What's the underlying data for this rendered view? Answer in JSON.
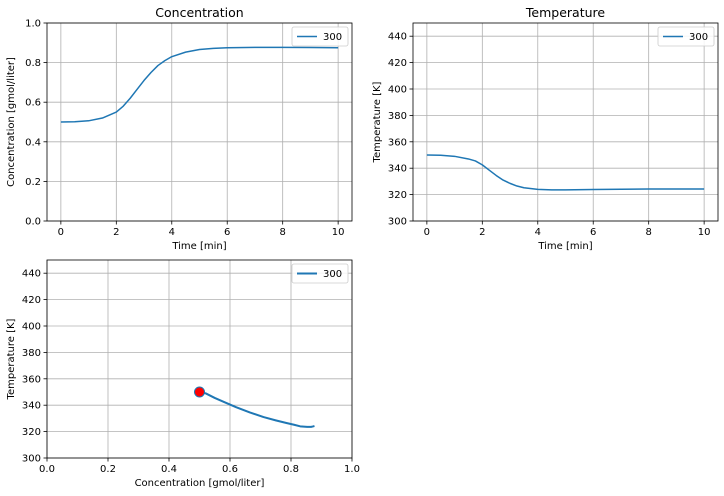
{
  "colors": {
    "series": "#1f77b4",
    "marker": "#ff0000",
    "grid": "#b0b0b0"
  },
  "chart_data": [
    {
      "type": "line",
      "title": "Concentration",
      "xlabel": "Time [min]",
      "ylabel": "Concentration [gmol/liter]",
      "xlim": [
        -0.5,
        10.5
      ],
      "ylim": [
        0,
        1
      ],
      "xticks": [
        0,
        2,
        4,
        6,
        8,
        10
      ],
      "yticks": [
        0.0,
        0.2,
        0.4,
        0.6,
        0.8,
        1.0
      ],
      "xtick_labels": [
        "0",
        "2",
        "4",
        "6",
        "8",
        "10"
      ],
      "ytick_labels": [
        "0.0",
        "0.2",
        "0.4",
        "0.6",
        "0.8",
        "1.0"
      ],
      "grid": true,
      "legend": "top-right",
      "series": [
        {
          "name": "300",
          "x": [
            0,
            0.5,
            1.0,
            1.5,
            2.0,
            2.25,
            2.5,
            2.75,
            3.0,
            3.25,
            3.5,
            3.75,
            4.0,
            4.5,
            5.0,
            5.5,
            6.0,
            7.0,
            8.0,
            9.0,
            10.0
          ],
          "y": [
            0.5,
            0.501,
            0.506,
            0.52,
            0.55,
            0.58,
            0.62,
            0.665,
            0.71,
            0.75,
            0.785,
            0.81,
            0.83,
            0.853,
            0.866,
            0.872,
            0.875,
            0.877,
            0.877,
            0.876,
            0.875
          ]
        }
      ]
    },
    {
      "type": "line",
      "title": "Temperature",
      "xlabel": "Time [min]",
      "ylabel": "Temperature [K]",
      "xlim": [
        -0.5,
        10.5
      ],
      "ylim": [
        300,
        450
      ],
      "xticks": [
        0,
        2,
        4,
        6,
        8,
        10
      ],
      "yticks": [
        300,
        320,
        340,
        360,
        380,
        400,
        420,
        440
      ],
      "xtick_labels": [
        "0",
        "2",
        "4",
        "6",
        "8",
        "10"
      ],
      "ytick_labels": [
        "300",
        "320",
        "340",
        "360",
        "380",
        "400",
        "420",
        "440"
      ],
      "grid": true,
      "legend": "top-right",
      "series": [
        {
          "name": "300",
          "x": [
            0,
            0.5,
            1.0,
            1.5,
            1.75,
            2.0,
            2.25,
            2.5,
            2.75,
            3.0,
            3.25,
            3.5,
            4.0,
            4.5,
            5.0,
            6.0,
            7.0,
            8.0,
            9.0,
            10.0
          ],
          "y": [
            350,
            349.8,
            349,
            347,
            345.5,
            342.5,
            338.5,
            334.5,
            331,
            328.5,
            326.5,
            325.2,
            324,
            323.6,
            323.6,
            323.9,
            324.1,
            324.2,
            324.2,
            324.2
          ]
        }
      ]
    },
    {
      "type": "line",
      "title": "",
      "xlabel": "Concentration [gmol/liter]",
      "ylabel": "Temperature [K]",
      "xlim": [
        0,
        1
      ],
      "ylim": [
        300,
        450
      ],
      "xticks": [
        0,
        0.2,
        0.4,
        0.6,
        0.8,
        1.0
      ],
      "yticks": [
        300,
        320,
        340,
        360,
        380,
        400,
        420,
        440
      ],
      "xtick_labels": [
        "0.0",
        "0.2",
        "0.4",
        "0.6",
        "0.8",
        "1.0"
      ],
      "ytick_labels": [
        "300",
        "320",
        "340",
        "360",
        "380",
        "400",
        "420",
        "440"
      ],
      "grid": true,
      "legend": "top-right",
      "series": [
        {
          "name": "300",
          "x": [
            0.5,
            0.52,
            0.55,
            0.58,
            0.62,
            0.665,
            0.71,
            0.75,
            0.785,
            0.81,
            0.83,
            0.853,
            0.866,
            0.872,
            0.875,
            0.877
          ],
          "y": [
            350,
            349,
            345.5,
            342.5,
            338.5,
            334.5,
            331,
            328.5,
            326.5,
            325.2,
            324,
            323.6,
            323.6,
            323.9,
            324.1,
            324.2
          ]
        }
      ],
      "markers": [
        {
          "x": 0.5,
          "y": 350
        }
      ]
    }
  ]
}
